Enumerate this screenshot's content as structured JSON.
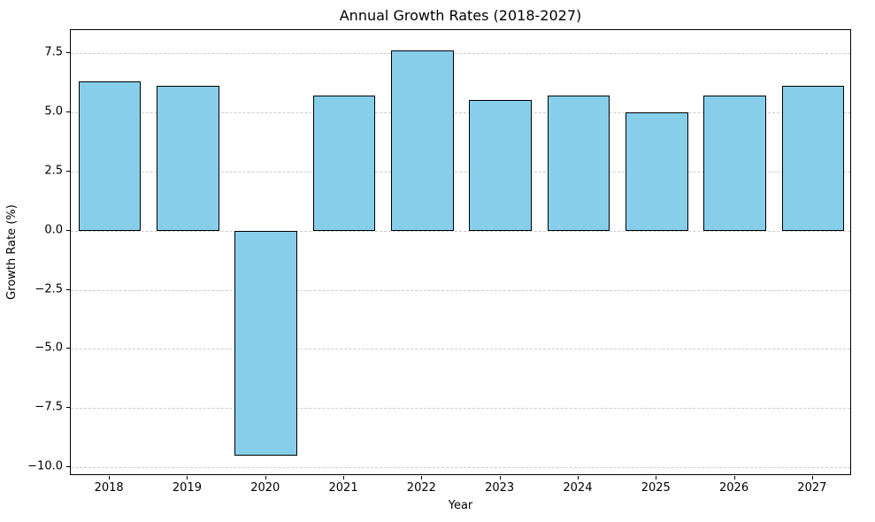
{
  "chart_data": {
    "type": "bar",
    "title": "Annual Growth Rates (2018-2027)",
    "xlabel": "Year",
    "ylabel": "Growth Rate (%)",
    "categories": [
      "2018",
      "2019",
      "2020",
      "2021",
      "2022",
      "2023",
      "2024",
      "2025",
      "2026",
      "2027"
    ],
    "values": [
      6.3,
      6.1,
      -9.5,
      5.7,
      7.6,
      5.5,
      5.7,
      5.0,
      5.7,
      6.1
    ],
    "yticks": [
      7.5,
      5.0,
      2.5,
      0.0,
      -2.5,
      -5.0,
      -7.5,
      -10.0
    ],
    "ylim": [
      -10.36,
      8.46
    ],
    "bar_color": "#87CEEB",
    "bar_edge_color": "#000000",
    "bar_width_fraction": 0.8,
    "grid": "on",
    "grid_color": "#cccccc",
    "legend": "none",
    "background": "#ffffff"
  }
}
